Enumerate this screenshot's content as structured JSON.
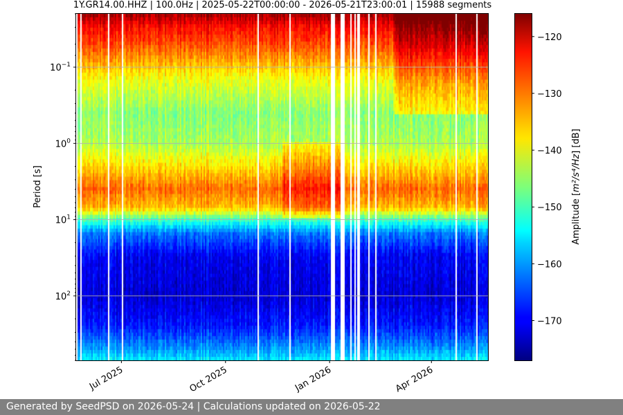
{
  "chart_data": {
    "type": "heatmap",
    "title": "1Y.GR14.00.HHZ | 100.0Hz | 2025-05-22T00:00:00 - 2026-05-21T23:00:01 | 15988 segments",
    "ylabel": "Period [s]",
    "y_scale": "log",
    "y_inverted": true,
    "ylim": [
      0.02,
      700
    ],
    "y_ticks": [
      {
        "value": 0.1,
        "base": "10",
        "exp": "−1"
      },
      {
        "value": 1,
        "base": "10",
        "exp": "0"
      },
      {
        "value": 10,
        "base": "10",
        "exp": "1"
      },
      {
        "value": 100,
        "base": "10",
        "exp": "2"
      }
    ],
    "xlim": [
      "2025-05-22",
      "2026-05-21"
    ],
    "x_ticks": [
      {
        "date": "2025-07-01",
        "label": "Jul 2025"
      },
      {
        "date": "2025-10-01",
        "label": "Oct 2025"
      },
      {
        "date": "2026-01-01",
        "label": "Jan 2026"
      },
      {
        "date": "2026-04-01",
        "label": "Apr 2026"
      }
    ],
    "grid": true,
    "colormap": "jet",
    "colorbar": {
      "label": "Amplitude [m²/s⁴/Hz] [dB]",
      "label_math": {
        "pre": "Amplitude [",
        "unit": "m²/s⁴/Hz",
        "post": "] [dB]"
      },
      "range": [
        -177,
        -116
      ],
      "ticks": [
        -120,
        -130,
        -140,
        -150,
        -160,
        -170
      ],
      "tick_labels": [
        "−120",
        "−130",
        "−140",
        "−150",
        "−160",
        "−170"
      ]
    },
    "data_gaps": [
      {
        "start": "2026-01-01",
        "end": "2026-01-05"
      },
      {
        "start": "2026-01-10",
        "end": "2026-01-14"
      },
      {
        "start": "2026-01-19",
        "end": "2026-01-20"
      },
      {
        "start": "2026-01-22",
        "end": "2026-01-24"
      },
      {
        "start": "2026-01-25",
        "end": "2026-01-27"
      }
    ],
    "amplitude_profile": [
      {
        "period": 0.02,
        "db": -118
      },
      {
        "period": 0.03,
        "db": -124
      },
      {
        "period": 0.05,
        "db": -128
      },
      {
        "period": 0.08,
        "db": -133
      },
      {
        "period": 0.15,
        "db": -140
      },
      {
        "period": 0.4,
        "db": -146
      },
      {
        "period": 1.0,
        "db": -144
      },
      {
        "period": 2.0,
        "db": -137
      },
      {
        "period": 4.0,
        "db": -130
      },
      {
        "period": 7.0,
        "db": -135
      },
      {
        "period": 10.0,
        "db": -150
      },
      {
        "period": 15.0,
        "db": -162
      },
      {
        "period": 30.0,
        "db": -170
      },
      {
        "period": 100.0,
        "db": -172
      },
      {
        "period": 250.0,
        "db": -168
      },
      {
        "period": 500.0,
        "db": -160
      },
      {
        "period": 700.0,
        "db": -155
      }
    ]
  },
  "footer": {
    "text": "Generated by SeedPSD on 2026-05-24 | Calculations updated on 2026-05-22"
  }
}
